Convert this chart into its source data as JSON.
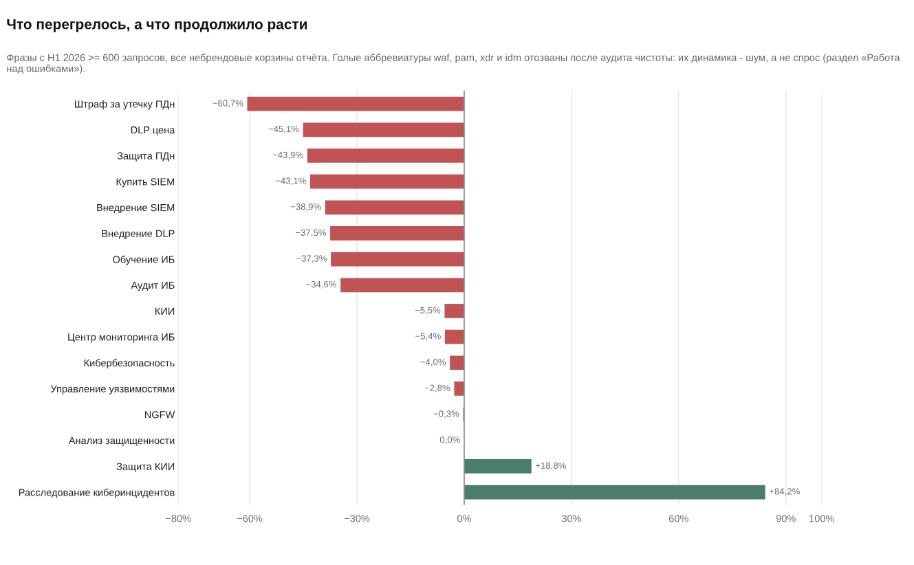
{
  "chart_data": {
    "type": "bar",
    "orientation": "horizontal",
    "title": "Что перегрелось, а что продолжило расти",
    "subtitle": "Фразы с H1 2026 >= 600 запросов, все небрендовые корзины отчёта. Голые аббревиатуры waf, pam, xdr и idm отозваны после аудита чистоты: их динамика - шум, а не спрос (раздел «Работа над ошибками»).",
    "categories": [
      "Штраф за утечку ПДн",
      "DLP цена",
      "Защита ПДн",
      "Купить SIEM",
      "Внедрение SIEM",
      "Внедрение DLP",
      "Обучение ИБ",
      "Аудит ИБ",
      "КИИ",
      "Центр мониторинга ИБ",
      "Кибербезопасность",
      "Управление уязвимостями",
      "NGFW",
      "Анализ защищенности",
      "Защита КИИ",
      "Расследование киберинцидентов"
    ],
    "values": [
      -60.7,
      -45.1,
      -43.9,
      -43.1,
      -38.9,
      -37.5,
      -37.3,
      -34.6,
      -5.5,
      -5.4,
      -4.0,
      -2.8,
      -0.3,
      0.0,
      18.8,
      84.2
    ],
    "value_labels": [
      "−60,7%",
      "−45,1%",
      "−43,9%",
      "−43,1%",
      "−38,9%",
      "−37,5%",
      "−37,3%",
      "−34,6%",
      "−5,5%",
      "−5,4%",
      "−4,0%",
      "−2,8%",
      "−0,3%",
      "0,0%",
      "+18,8%",
      "+84,2%"
    ],
    "colors": [
      "#c05454",
      "#c05454",
      "#c05454",
      "#c05454",
      "#c05454",
      "#c05454",
      "#c05454",
      "#c05454",
      "#c05454",
      "#c05454",
      "#c05454",
      "#c05454",
      "#c05454",
      "#c05454",
      "#4a7d6b",
      "#4a7d6b"
    ],
    "xlim": [
      -80,
      100
    ],
    "xticks": [
      {
        "value": -80,
        "label": "−80%"
      },
      {
        "value": -60,
        "label": "−60%"
      },
      {
        "value": -30,
        "label": "−30%"
      },
      {
        "value": 0,
        "label": "0%"
      },
      {
        "value": 30,
        "label": "30%"
      },
      {
        "value": 60,
        "label": "60%"
      },
      {
        "value": 90,
        "label": "90%"
      },
      {
        "value": 100,
        "label": "100%"
      }
    ],
    "grid": "x"
  }
}
